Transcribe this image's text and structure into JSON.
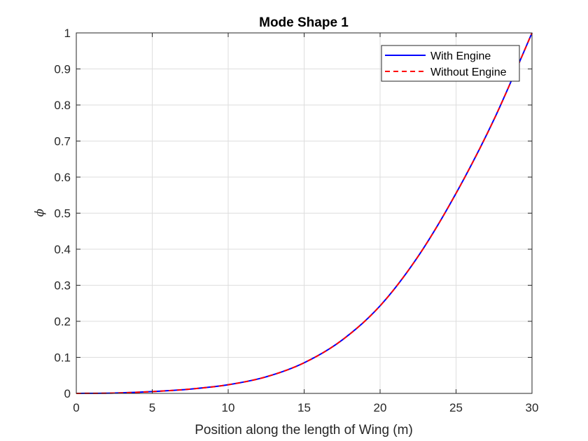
{
  "chart_data": {
    "type": "line",
    "title": "Mode Shape 1",
    "xlabel": "Position along the length of Wing (m)",
    "ylabel": "ϕ",
    "xlim": [
      0,
      30
    ],
    "ylim": [
      0,
      1
    ],
    "xticks": [
      "0",
      "5",
      "10",
      "15",
      "20",
      "25",
      "30"
    ],
    "yticks": [
      "0",
      "0.1",
      "0.2",
      "0.3",
      "0.4",
      "0.5",
      "0.6",
      "0.7",
      "0.8",
      "0.9",
      "1"
    ],
    "grid": true,
    "legend_position": "top-right",
    "x": [
      0,
      2.5,
      5,
      7.5,
      10,
      12.5,
      15,
      17.5,
      20,
      22.5,
      25,
      27.5,
      30
    ],
    "series": [
      {
        "name": "With Engine",
        "color": "#0000ff",
        "style": "solid",
        "values": [
          0,
          0.001,
          0.005,
          0.012,
          0.024,
          0.046,
          0.085,
          0.148,
          0.243,
          0.38,
          0.555,
          0.76,
          1.0
        ]
      },
      {
        "name": "Without Engine",
        "color": "#ff0000",
        "style": "dashed",
        "values": [
          0,
          0.001,
          0.005,
          0.012,
          0.024,
          0.046,
          0.085,
          0.148,
          0.243,
          0.38,
          0.555,
          0.76,
          1.0
        ]
      }
    ]
  }
}
